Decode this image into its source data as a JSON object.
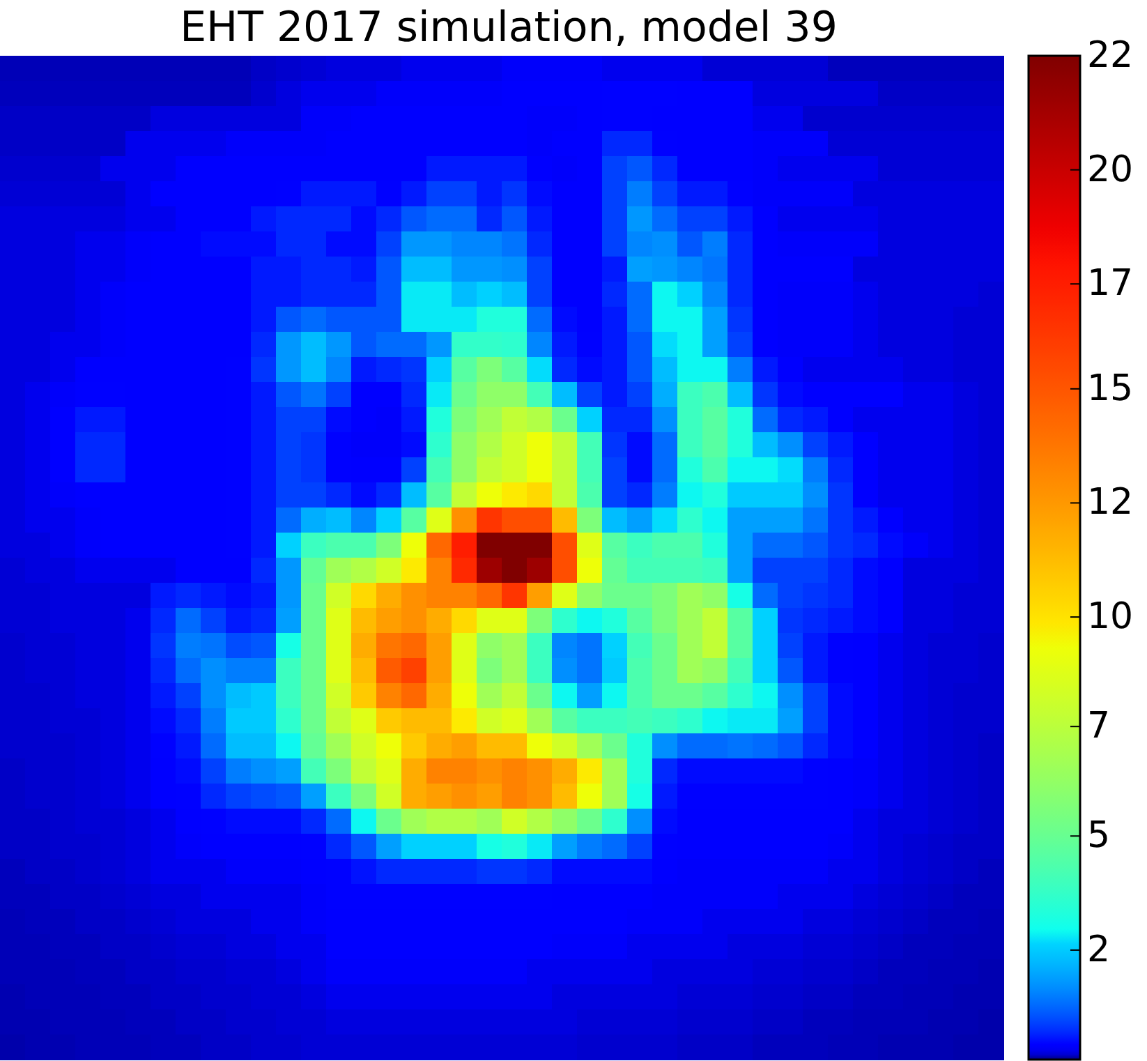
{
  "chart_data": {
    "type": "heatmap",
    "title": "EHT 2017 simulation, model 39",
    "categories": [
      null,
      null,
      null,
      null,
      null,
      null,
      null,
      null,
      null,
      null,
      null,
      null,
      null,
      null,
      null,
      null,
      null,
      null,
      null,
      null,
      null,
      null,
      null,
      null,
      null,
      null,
      null,
      null,
      null,
      null,
      null,
      null,
      null,
      null,
      null,
      null,
      null,
      null,
      null,
      null
    ],
    "y_categories": [
      null,
      null,
      null,
      null,
      null,
      null,
      null,
      null,
      null,
      null,
      null,
      null,
      null,
      null,
      null,
      null,
      null,
      null,
      null,
      null,
      null,
      null,
      null,
      null,
      null,
      null,
      null,
      null,
      null,
      null,
      null,
      null,
      null,
      null,
      null,
      null,
      null,
      null,
      null,
      null
    ],
    "tick_labels": false,
    "clim": [
      0,
      22
    ],
    "cticks": [
      {
        "value": 2.4,
        "label": "2"
      },
      {
        "value": 4.9,
        "label": "5"
      },
      {
        "value": 7.3,
        "label": "7"
      },
      {
        "value": 9.7,
        "label": "10"
      },
      {
        "value": 12.2,
        "label": "12"
      },
      {
        "value": 14.7,
        "label": "15"
      },
      {
        "value": 17,
        "label": "17"
      },
      {
        "value": 19.5,
        "label": "20"
      },
      22
    ],
    "cells": [
      [
        0.05,
        0.05,
        0.05,
        0.05,
        0.05,
        0.05,
        0.05,
        0.05,
        0.05,
        0.05,
        0.08,
        0.1,
        0.12,
        0.15,
        0.15,
        0.15,
        0.2,
        0.2,
        0.2,
        0.2,
        0.25,
        0.25,
        0.25,
        0.25,
        0.2,
        0.2,
        0.2,
        0.2,
        0.12,
        0.12,
        0.12,
        0.12,
        0.12,
        0.06,
        0.06,
        0.06,
        0.06,
        0.06,
        0.06,
        0.06
      ],
      [
        0.06,
        0.06,
        0.06,
        0.06,
        0.06,
        0.06,
        0.06,
        0.06,
        0.06,
        0.06,
        0.1,
        0.15,
        0.2,
        0.2,
        0.2,
        0.25,
        0.25,
        0.25,
        0.25,
        0.25,
        0.3,
        0.3,
        0.3,
        0.3,
        0.35,
        0.35,
        0.35,
        0.3,
        0.3,
        0.3,
        0.15,
        0.15,
        0.15,
        0.15,
        0.15,
        0.08,
        0.08,
        0.08,
        0.08,
        0.08
      ],
      [
        0.08,
        0.08,
        0.08,
        0.08,
        0.08,
        0.08,
        0.15,
        0.15,
        0.15,
        0.15,
        0.15,
        0.15,
        0.25,
        0.25,
        0.3,
        0.3,
        0.3,
        0.3,
        0.3,
        0.3,
        0.3,
        0.25,
        0.25,
        0.3,
        0.35,
        0.35,
        0.3,
        0.3,
        0.3,
        0.3,
        0.2,
        0.2,
        0.1,
        0.1,
        0.1,
        0.1,
        0.1,
        0.1,
        0.1,
        0.1
      ],
      [
        0.08,
        0.08,
        0.08,
        0.08,
        0.08,
        0.2,
        0.2,
        0.2,
        0.2,
        0.25,
        0.25,
        0.25,
        0.25,
        0.3,
        0.3,
        0.3,
        0.3,
        0.3,
        0.3,
        0.3,
        0.3,
        0.25,
        0.3,
        0.3,
        0.6,
        0.6,
        0.35,
        0.3,
        0.3,
        0.3,
        0.25,
        0.25,
        0.25,
        0.12,
        0.12,
        0.12,
        0.12,
        0.12,
        0.12,
        0.12
      ],
      [
        0.1,
        0.1,
        0.1,
        0.1,
        0.2,
        0.2,
        0.2,
        0.3,
        0.3,
        0.3,
        0.3,
        0.3,
        0.3,
        0.3,
        0.3,
        0.3,
        0.3,
        0.5,
        0.5,
        0.5,
        0.5,
        0.3,
        0.25,
        0.3,
        0.8,
        1.0,
        0.6,
        0.3,
        0.3,
        0.3,
        0.25,
        0.2,
        0.2,
        0.2,
        0.2,
        0.12,
        0.12,
        0.12,
        0.12,
        0.12
      ],
      [
        0.12,
        0.12,
        0.12,
        0.12,
        0.12,
        0.2,
        0.3,
        0.3,
        0.3,
        0.3,
        0.3,
        0.35,
        0.5,
        0.5,
        0.5,
        0.35,
        0.5,
        0.8,
        0.8,
        0.5,
        0.7,
        0.4,
        0.3,
        0.3,
        0.8,
        1.4,
        0.8,
        0.5,
        0.5,
        0.35,
        0.25,
        0.25,
        0.25,
        0.25,
        0.15,
        0.15,
        0.15,
        0.15,
        0.15,
        0.15
      ],
      [
        0.15,
        0.15,
        0.15,
        0.15,
        0.15,
        0.2,
        0.2,
        0.3,
        0.3,
        0.3,
        0.5,
        0.6,
        0.6,
        0.6,
        0.4,
        0.6,
        1.0,
        1.2,
        1.2,
        0.6,
        1.0,
        0.5,
        0.3,
        0.3,
        0.8,
        1.7,
        1.2,
        0.8,
        0.8,
        0.5,
        0.3,
        0.2,
        0.2,
        0.2,
        0.2,
        0.15,
        0.15,
        0.15,
        0.15,
        0.15
      ],
      [
        0.15,
        0.15,
        0.15,
        0.2,
        0.2,
        0.25,
        0.3,
        0.3,
        0.4,
        0.4,
        0.4,
        0.6,
        0.6,
        0.4,
        0.4,
        0.8,
        1.7,
        1.7,
        1.5,
        1.5,
        1.3,
        0.6,
        0.3,
        0.3,
        0.8,
        1.5,
        1.6,
        1.0,
        1.4,
        0.6,
        0.3,
        0.25,
        0.25,
        0.25,
        0.25,
        0.15,
        0.15,
        0.15,
        0.15,
        0.15
      ],
      [
        0.15,
        0.15,
        0.15,
        0.2,
        0.2,
        0.25,
        0.3,
        0.3,
        0.3,
        0.3,
        0.5,
        0.5,
        0.6,
        0.6,
        0.5,
        1.0,
        2.2,
        2.2,
        1.7,
        1.7,
        1.6,
        0.8,
        0.3,
        0.3,
        0.5,
        1.8,
        1.7,
        1.5,
        1.3,
        0.6,
        0.3,
        0.3,
        0.3,
        0.3,
        0.15,
        0.15,
        0.15,
        0.15,
        0.15,
        0.15
      ],
      [
        0.15,
        0.15,
        0.15,
        0.2,
        0.25,
        0.3,
        0.3,
        0.3,
        0.3,
        0.3,
        0.5,
        0.5,
        0.6,
        0.6,
        0.6,
        1.0,
        2.7,
        2.7,
        2.2,
        2.5,
        2.2,
        0.8,
        0.3,
        0.3,
        0.6,
        1.2,
        2.8,
        2.5,
        1.5,
        0.6,
        0.3,
        0.25,
        0.25,
        0.25,
        0.2,
        0.15,
        0.15,
        0.15,
        0.15,
        0.12
      ],
      [
        0.15,
        0.15,
        0.15,
        0.2,
        0.25,
        0.3,
        0.3,
        0.3,
        0.3,
        0.3,
        0.5,
        1.0,
        1.2,
        1.0,
        1.0,
        1.0,
        2.7,
        2.7,
        2.7,
        3.2,
        3.2,
        1.2,
        0.4,
        0.3,
        0.5,
        1.2,
        2.8,
        2.8,
        1.8,
        0.7,
        0.3,
        0.25,
        0.25,
        0.25,
        0.2,
        0.15,
        0.15,
        0.15,
        0.12,
        0.12
      ],
      [
        0.15,
        0.15,
        0.2,
        0.2,
        0.25,
        0.3,
        0.3,
        0.3,
        0.3,
        0.3,
        0.6,
        1.7,
        2.2,
        1.7,
        1.0,
        1.2,
        1.2,
        1.7,
        3.6,
        3.6,
        3.5,
        1.5,
        0.5,
        0.35,
        0.5,
        1.0,
        2.6,
        2.8,
        1.8,
        0.8,
        0.3,
        0.25,
        0.25,
        0.25,
        0.2,
        0.15,
        0.15,
        0.15,
        0.12,
        0.12
      ],
      [
        0.15,
        0.15,
        0.2,
        0.3,
        0.3,
        0.3,
        0.3,
        0.3,
        0.3,
        0.35,
        0.7,
        1.7,
        2.2,
        1.5,
        0.5,
        0.6,
        0.7,
        2.5,
        4.5,
        5.5,
        4.5,
        2.6,
        0.6,
        0.4,
        0.5,
        1.0,
        2.2,
        2.8,
        2.8,
        1.4,
        0.5,
        0.3,
        0.2,
        0.2,
        0.2,
        0.2,
        0.15,
        0.15,
        0.12,
        0.12
      ],
      [
        0.15,
        0.2,
        0.25,
        0.35,
        0.35,
        0.3,
        0.3,
        0.3,
        0.3,
        0.35,
        0.5,
        1.0,
        1.3,
        0.8,
        0.3,
        0.3,
        0.6,
        2.7,
        5,
        6,
        6,
        4,
        2.2,
        0.8,
        0.5,
        0.8,
        2.0,
        3.8,
        4.2,
        2.2,
        0.7,
        0.4,
        0.3,
        0.3,
        0.3,
        0.3,
        0.2,
        0.2,
        0.15,
        0.12
      ],
      [
        0.15,
        0.2,
        0.3,
        0.5,
        0.5,
        0.3,
        0.3,
        0.3,
        0.3,
        0.35,
        0.5,
        0.8,
        0.8,
        0.4,
        0.3,
        0.25,
        0.5,
        3.2,
        5.5,
        6.5,
        7.5,
        7,
        5,
        2.5,
        0.6,
        0.6,
        1.6,
        3.8,
        4.5,
        3.2,
        1.2,
        0.6,
        0.5,
        0.3,
        0.2,
        0.2,
        0.2,
        0.2,
        0.15,
        0.12
      ],
      [
        0.15,
        0.2,
        0.3,
        0.6,
        0.6,
        0.3,
        0.3,
        0.3,
        0.3,
        0.35,
        0.5,
        0.8,
        0.7,
        0.35,
        0.25,
        0.25,
        0.4,
        3.5,
        6,
        7,
        8,
        9,
        7.5,
        4,
        0.7,
        0.4,
        1.2,
        3.8,
        4.5,
        3.2,
        2.2,
        1.6,
        0.8,
        0.5,
        0.3,
        0.2,
        0.2,
        0.2,
        0.15,
        0.12
      ],
      [
        0.15,
        0.2,
        0.3,
        0.6,
        0.6,
        0.3,
        0.3,
        0.3,
        0.3,
        0.35,
        0.5,
        0.8,
        0.7,
        0.35,
        0.3,
        0.3,
        0.8,
        4,
        6,
        7.5,
        8,
        9,
        7.5,
        4,
        0.8,
        0.4,
        1.2,
        3.2,
        4.2,
        2.8,
        2.8,
        2.6,
        1.4,
        0.6,
        0.3,
        0.2,
        0.2,
        0.2,
        0.15,
        0.12
      ],
      [
        0.15,
        0.2,
        0.25,
        0.3,
        0.3,
        0.3,
        0.3,
        0.3,
        0.3,
        0.35,
        0.5,
        0.8,
        0.8,
        0.6,
        0.4,
        0.6,
        2.2,
        4.5,
        7.5,
        9,
        9.5,
        10,
        7.5,
        4.2,
        0.8,
        0.6,
        1.4,
        2.8,
        3.2,
        2.4,
        2.4,
        2.4,
        1.6,
        0.7,
        0.3,
        0.2,
        0.2,
        0.2,
        0.15,
        0.12
      ],
      [
        0.15,
        0.2,
        0.2,
        0.25,
        0.3,
        0.3,
        0.3,
        0.3,
        0.3,
        0.35,
        0.5,
        1.2,
        2,
        2.2,
        1.5,
        2.5,
        4.5,
        8.5,
        12.5,
        16,
        15,
        15,
        11,
        5.5,
        2.2,
        1.8,
        2.6,
        3.5,
        2.8,
        1.8,
        1.8,
        1.8,
        1.3,
        0.7,
        0.5,
        0.3,
        0.2,
        0.2,
        0.15,
        0.12
      ],
      [
        0.15,
        0.15,
        0.2,
        0.25,
        0.3,
        0.3,
        0.3,
        0.3,
        0.3,
        0.35,
        0.5,
        2.5,
        3.8,
        4.2,
        4.2,
        5.5,
        9,
        14,
        17,
        22,
        22,
        22,
        15,
        8.5,
        4.5,
        3.8,
        4.2,
        4.2,
        3.2,
        1.8,
        1.2,
        1.2,
        1.0,
        0.7,
        0.6,
        0.4,
        0.25,
        0.2,
        0.15,
        0.12
      ],
      [
        0.12,
        0.15,
        0.15,
        0.2,
        0.2,
        0.2,
        0.2,
        0.3,
        0.3,
        0.3,
        0.6,
        1.7,
        4.8,
        6.5,
        7,
        8,
        9.5,
        13,
        16.5,
        21,
        22,
        21,
        15,
        9,
        4.8,
        4,
        4,
        4,
        3.8,
        1.8,
        0.8,
        0.8,
        0.8,
        0.6,
        0.4,
        0.3,
        0.15,
        0.15,
        0.15,
        0.12
      ],
      [
        0.12,
        0.12,
        0.15,
        0.15,
        0.15,
        0.15,
        0.5,
        0.6,
        0.5,
        0.4,
        0.5,
        1.7,
        5,
        8,
        10,
        11.5,
        12.5,
        13,
        13,
        14,
        16,
        12,
        8.5,
        6,
        5,
        5,
        5.5,
        6.5,
        6,
        3,
        1.2,
        0.8,
        0.7,
        0.6,
        0.4,
        0.3,
        0.15,
        0.15,
        0.12,
        0.12
      ],
      [
        0.12,
        0.12,
        0.15,
        0.15,
        0.15,
        0.2,
        0.6,
        1.2,
        0.8,
        0.5,
        0.6,
        1.8,
        5,
        8.5,
        11,
        12,
        12.5,
        11.5,
        10,
        8.5,
        8.5,
        5.5,
        3.5,
        2.8,
        3.2,
        4.5,
        5.5,
        6.5,
        7.5,
        4.5,
        2.5,
        0.7,
        0.6,
        0.5,
        0.4,
        0.3,
        0.15,
        0.15,
        0.12,
        0.12
      ],
      [
        0.1,
        0.12,
        0.12,
        0.15,
        0.15,
        0.2,
        0.7,
        1.4,
        1.3,
        0.9,
        1.0,
        3,
        5,
        8.5,
        11.5,
        13.5,
        14,
        12,
        8.5,
        6,
        6.5,
        3.8,
        1.5,
        1.3,
        2.5,
        4,
        5,
        6.5,
        7.5,
        4.5,
        2.5,
        0.8,
        0.5,
        0.35,
        0.3,
        0.2,
        0.15,
        0.12,
        0.12,
        0.1
      ],
      [
        0.1,
        0.12,
        0.12,
        0.15,
        0.15,
        0.2,
        0.6,
        1.2,
        1.6,
        1.4,
        1.4,
        3.8,
        5,
        8.5,
        11,
        14.5,
        15.5,
        12,
        8.5,
        5.5,
        6.5,
        3.8,
        1.6,
        1.3,
        2.4,
        4.2,
        5,
        6.5,
        6,
        4,
        2.5,
        1.0,
        0.5,
        0.35,
        0.3,
        0.2,
        0.15,
        0.12,
        0.12,
        0.1
      ],
      [
        0.1,
        0.1,
        0.12,
        0.15,
        0.15,
        0.2,
        0.5,
        0.8,
        1.6,
        2.2,
        2.4,
        3.8,
        5,
        8,
        10.5,
        13,
        14,
        11.5,
        9,
        6.5,
        7.5,
        5,
        2.8,
        1.8,
        2.8,
        4.2,
        5,
        5,
        4.5,
        3.5,
        2.8,
        1.6,
        0.8,
        0.4,
        0.3,
        0.2,
        0.15,
        0.12,
        0.1,
        0.1
      ],
      [
        0.1,
        0.1,
        0.12,
        0.12,
        0.15,
        0.2,
        0.4,
        0.6,
        1.4,
        2.4,
        2.4,
        3.5,
        5,
        7.5,
        8.5,
        10.5,
        11,
        11,
        9.5,
        8,
        8.5,
        6.5,
        4.5,
        3.8,
        3.8,
        4,
        3.8,
        3.5,
        2.8,
        2.7,
        2.7,
        1.8,
        0.8,
        0.4,
        0.3,
        0.2,
        0.15,
        0.12,
        0.1,
        0.1
      ],
      [
        0.1,
        0.1,
        0.1,
        0.12,
        0.15,
        0.2,
        0.35,
        0.5,
        1.2,
        2.2,
        2.2,
        2.8,
        4.8,
        6.5,
        8,
        9,
        10.5,
        11.5,
        12,
        11,
        11,
        9,
        8,
        6.5,
        5,
        3.2,
        1.6,
        1.2,
        1.2,
        1.3,
        1.2,
        1.0,
        0.6,
        0.4,
        0.3,
        0.2,
        0.15,
        0.12,
        0.1,
        0.08
      ],
      [
        0.08,
        0.1,
        0.1,
        0.12,
        0.15,
        0.2,
        0.3,
        0.4,
        0.8,
        1.4,
        1.6,
        1.8,
        4,
        5.5,
        7.5,
        8.5,
        11.5,
        13,
        13,
        12.5,
        13,
        12.5,
        11.5,
        9.5,
        6.5,
        3.2,
        0.6,
        0.4,
        0.4,
        0.4,
        0.4,
        0.4,
        0.35,
        0.3,
        0.25,
        0.2,
        0.15,
        0.12,
        0.1,
        0.08
      ],
      [
        0.08,
        0.1,
        0.1,
        0.12,
        0.15,
        0.2,
        0.3,
        0.35,
        0.6,
        0.8,
        0.9,
        1.0,
        1.8,
        3.8,
        5.5,
        8,
        11.5,
        12,
        12.5,
        12,
        13,
        12.5,
        11,
        9,
        6.5,
        3,
        0.5,
        0.35,
        0.35,
        0.35,
        0.35,
        0.35,
        0.35,
        0.3,
        0.25,
        0.2,
        0.15,
        0.12,
        0.1,
        0.08
      ],
      [
        0.08,
        0.08,
        0.1,
        0.12,
        0.12,
        0.15,
        0.2,
        0.3,
        0.35,
        0.4,
        0.4,
        0.4,
        0.6,
        1.2,
        2.8,
        5,
        6.5,
        7,
        7,
        6.5,
        8,
        7,
        6,
        5,
        3.5,
        1.6,
        0.4,
        0.3,
        0.3,
        0.3,
        0.3,
        0.3,
        0.3,
        0.3,
        0.2,
        0.15,
        0.15,
        0.12,
        0.1,
        0.08
      ],
      [
        0.08,
        0.08,
        0.1,
        0.1,
        0.12,
        0.15,
        0.2,
        0.25,
        0.3,
        0.3,
        0.3,
        0.3,
        0.35,
        0.6,
        1.0,
        1.8,
        2.5,
        2.5,
        2.5,
        3,
        3.2,
        2.7,
        1.8,
        1.4,
        1.2,
        0.8,
        0.35,
        0.3,
        0.3,
        0.3,
        0.3,
        0.3,
        0.3,
        0.25,
        0.2,
        0.15,
        0.12,
        0.1,
        0.08,
        0.08
      ],
      [
        0.06,
        0.08,
        0.08,
        0.1,
        0.12,
        0.15,
        0.2,
        0.2,
        0.2,
        0.25,
        0.25,
        0.25,
        0.3,
        0.35,
        0.45,
        0.6,
        0.6,
        0.6,
        0.6,
        0.7,
        0.7,
        0.6,
        0.4,
        0.4,
        0.4,
        0.4,
        0.3,
        0.25,
        0.25,
        0.25,
        0.25,
        0.25,
        0.25,
        0.2,
        0.2,
        0.15,
        0.12,
        0.1,
        0.08,
        0.06
      ],
      [
        0.06,
        0.06,
        0.08,
        0.08,
        0.1,
        0.12,
        0.15,
        0.15,
        0.2,
        0.2,
        0.2,
        0.2,
        0.25,
        0.35,
        0.35,
        0.35,
        0.35,
        0.35,
        0.35,
        0.35,
        0.35,
        0.35,
        0.3,
        0.3,
        0.3,
        0.3,
        0.25,
        0.25,
        0.25,
        0.25,
        0.25,
        0.2,
        0.2,
        0.2,
        0.15,
        0.12,
        0.1,
        0.08,
        0.06,
        0.06
      ],
      [
        0.05,
        0.06,
        0.06,
        0.08,
        0.08,
        0.1,
        0.12,
        0.15,
        0.15,
        0.15,
        0.2,
        0.2,
        0.25,
        0.3,
        0.3,
        0.3,
        0.3,
        0.3,
        0.3,
        0.3,
        0.3,
        0.3,
        0.3,
        0.3,
        0.3,
        0.25,
        0.25,
        0.25,
        0.2,
        0.2,
        0.2,
        0.2,
        0.15,
        0.15,
        0.12,
        0.1,
        0.08,
        0.06,
        0.06,
        0.05
      ],
      [
        0.05,
        0.05,
        0.06,
        0.06,
        0.08,
        0.08,
        0.1,
        0.12,
        0.12,
        0.15,
        0.15,
        0.2,
        0.2,
        0.3,
        0.3,
        0.3,
        0.3,
        0.3,
        0.3,
        0.3,
        0.3,
        0.3,
        0.25,
        0.25,
        0.25,
        0.2,
        0.2,
        0.2,
        0.2,
        0.15,
        0.15,
        0.15,
        0.12,
        0.12,
        0.1,
        0.08,
        0.06,
        0.06,
        0.05,
        0.05
      ],
      [
        0.05,
        0.05,
        0.05,
        0.06,
        0.06,
        0.08,
        0.08,
        0.1,
        0.1,
        0.12,
        0.12,
        0.15,
        0.2,
        0.25,
        0.25,
        0.25,
        0.25,
        0.25,
        0.25,
        0.25,
        0.25,
        0.2,
        0.2,
        0.2,
        0.2,
        0.2,
        0.15,
        0.15,
        0.15,
        0.15,
        0.12,
        0.12,
        0.1,
        0.1,
        0.08,
        0.06,
        0.06,
        0.05,
        0.05,
        0.04
      ],
      [
        0.04,
        0.05,
        0.05,
        0.05,
        0.06,
        0.06,
        0.08,
        0.08,
        0.1,
        0.1,
        0.12,
        0.12,
        0.15,
        0.2,
        0.2,
        0.2,
        0.2,
        0.2,
        0.2,
        0.2,
        0.2,
        0.2,
        0.15,
        0.15,
        0.15,
        0.15,
        0.15,
        0.12,
        0.12,
        0.12,
        0.1,
        0.1,
        0.08,
        0.08,
        0.06,
        0.06,
        0.05,
        0.05,
        0.04,
        0.04
      ],
      [
        0.04,
        0.04,
        0.05,
        0.05,
        0.05,
        0.06,
        0.06,
        0.08,
        0.08,
        0.1,
        0.1,
        0.12,
        0.12,
        0.15,
        0.15,
        0.15,
        0.15,
        0.15,
        0.15,
        0.15,
        0.15,
        0.15,
        0.15,
        0.12,
        0.12,
        0.12,
        0.12,
        0.1,
        0.1,
        0.1,
        0.08,
        0.08,
        0.06,
        0.06,
        0.05,
        0.05,
        0.05,
        0.04,
        0.04,
        0.03
      ],
      [
        0.03,
        0.04,
        0.04,
        0.05,
        0.05,
        0.05,
        0.06,
        0.06,
        0.08,
        0.08,
        0.1,
        0.1,
        0.12,
        0.12,
        0.12,
        0.12,
        0.12,
        0.12,
        0.12,
        0.12,
        0.12,
        0.12,
        0.12,
        0.1,
        0.1,
        0.1,
        0.1,
        0.08,
        0.08,
        0.08,
        0.06,
        0.06,
        0.06,
        0.05,
        0.05,
        0.04,
        0.04,
        0.04,
        0.03,
        0.03
      ]
    ]
  }
}
